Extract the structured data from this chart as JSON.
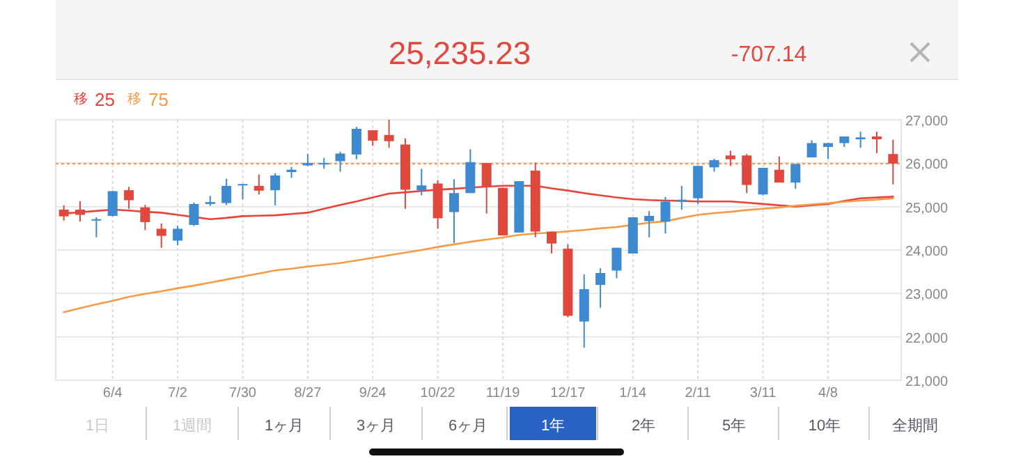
{
  "chart_data": {
    "type": "candlestick",
    "categories": [
      null,
      null,
      null,
      "6/4",
      null,
      null,
      null,
      "7/2",
      null,
      null,
      null,
      "7/30",
      null,
      null,
      null,
      "8/27",
      null,
      null,
      null,
      "9/24",
      null,
      null,
      null,
      "10/22",
      null,
      null,
      null,
      "11/19",
      null,
      null,
      null,
      "12/17",
      null,
      null,
      null,
      "1/14",
      null,
      null,
      null,
      "2/11",
      null,
      null,
      null,
      "3/11",
      null,
      null,
      null,
      "4/8",
      null,
      null,
      null,
      null
    ],
    "ohlc": [
      [
        24930,
        25030,
        24680,
        24775
      ],
      [
        24930,
        25125,
        24655,
        24810
      ],
      [
        24677,
        24754,
        24293,
        24710
      ],
      [
        24786,
        25367,
        24775,
        25356
      ],
      [
        25378,
        25455,
        24950,
        25148
      ],
      [
        24984,
        25038,
        24458,
        24644
      ],
      [
        24490,
        24611,
        24052,
        24326
      ],
      [
        24216,
        24556,
        24107,
        24490
      ],
      [
        24578,
        25093,
        24556,
        25060
      ],
      [
        25060,
        25247,
        25017,
        25104
      ],
      [
        25082,
        25641,
        25038,
        25477
      ],
      [
        25488,
        25520,
        25170,
        25520
      ],
      [
        25477,
        25740,
        25280,
        25367
      ],
      [
        25378,
        25773,
        25027,
        25718
      ],
      [
        25795,
        25915,
        25663,
        25850
      ],
      [
        25948,
        26211,
        25937,
        26003
      ],
      [
        25981,
        26123,
        25871,
        26003
      ],
      [
        26046,
        26266,
        25806,
        26222
      ],
      [
        26200,
        26836,
        26091,
        26792
      ],
      [
        26759,
        26759,
        26398,
        26518
      ],
      [
        26650,
        27000,
        26354,
        26507
      ],
      [
        26431,
        26573,
        24950,
        25389
      ],
      [
        25378,
        25871,
        25258,
        25488
      ],
      [
        25532,
        25608,
        24490,
        24731
      ],
      [
        24874,
        25630,
        24161,
        25312
      ],
      [
        25312,
        26321,
        25312,
        26025
      ],
      [
        26003,
        26003,
        24841,
        25477
      ],
      [
        25433,
        25433,
        24337,
        24337
      ],
      [
        24403,
        25586,
        24403,
        25586
      ],
      [
        25828,
        26014,
        24293,
        24425
      ],
      [
        24425,
        24425,
        23921,
        24150
      ],
      [
        24030,
        24129,
        22452,
        22485
      ],
      [
        22353,
        23438,
        21750,
        23098
      ],
      [
        23197,
        23580,
        22671,
        23471
      ],
      [
        23526,
        24052,
        23350,
        24052
      ],
      [
        23920,
        24753,
        23920,
        24753
      ],
      [
        24665,
        24896,
        24293,
        24786
      ],
      [
        24655,
        25225,
        24380,
        25115
      ],
      [
        25115,
        25477,
        24929,
        25159
      ],
      [
        25192,
        25937,
        25060,
        25937
      ],
      [
        25904,
        26102,
        25806,
        26069
      ],
      [
        26178,
        26288,
        25937,
        26090
      ],
      [
        26178,
        26211,
        25312,
        25499
      ],
      [
        25280,
        25893,
        25258,
        25893
      ],
      [
        25850,
        26156,
        25554,
        25554
      ],
      [
        25554,
        25981,
        25411,
        25981
      ],
      [
        26134,
        26529,
        26134,
        26463
      ],
      [
        26375,
        26463,
        26101,
        26463
      ],
      [
        26463,
        26616,
        26375,
        26616
      ],
      [
        26551,
        26726,
        26354,
        26595
      ],
      [
        26616,
        26726,
        26233,
        26551
      ],
      [
        26211,
        26540,
        25513,
        25992
      ]
    ],
    "colors": [
      "#e0483e",
      "#e0483e",
      "#3d8ad0",
      "#3d8ad0",
      "#e0483e",
      "#e0483e",
      "#e0483e",
      "#3d8ad0",
      "#3d8ad0",
      "#3d8ad0",
      "#3d8ad0",
      "#3d8ad0",
      "#e0483e",
      "#3d8ad0",
      "#3d8ad0",
      "#3d8ad0",
      "#3d8ad0",
      "#3d8ad0",
      "#3d8ad0",
      "#e0483e",
      "#e0483e",
      "#e0483e",
      "#3d8ad0",
      "#e0483e",
      "#3d8ad0",
      "#3d8ad0",
      "#e0483e",
      "#e0483e",
      "#3d8ad0",
      "#e0483e",
      "#e0483e",
      "#e0483e",
      "#3d8ad0",
      "#3d8ad0",
      "#3d8ad0",
      "#3d8ad0",
      "#3d8ad0",
      "#3d8ad0",
      "#3d8ad0",
      "#3d8ad0",
      "#3d8ad0",
      "#e0483e",
      "#e0483e",
      "#3d8ad0",
      "#e0483e",
      "#3d8ad0",
      "#3d8ad0",
      "#3d8ad0",
      "#3d8ad0",
      "#3d8ad0",
      "#e0483e",
      "#e0483e"
    ],
    "series": [
      {
        "name": "移 25",
        "type": "line",
        "color": "#e8423a",
        "values": [
          24840,
          24870,
          24900,
          24930,
          24910,
          24880,
          24860,
          24810,
          24760,
          24710,
          24740,
          24780,
          24790,
          24800,
          24830,
          24860,
          24950,
          25040,
          25120,
          25210,
          25300,
          25330,
          25360,
          25390,
          25410,
          25440,
          25460,
          25480,
          25480,
          25480,
          25420,
          25370,
          25310,
          25260,
          25210,
          25170,
          25150,
          25140,
          25130,
          25120,
          25120,
          25120,
          25090,
          25060,
          25030,
          25000,
          25030,
          25060,
          25130,
          25190,
          25210,
          25230
        ]
      },
      {
        "name": "移 75",
        "type": "line",
        "color": "#f59a45",
        "values": [
          22570,
          22660,
          22750,
          22830,
          22920,
          22990,
          23050,
          23120,
          23180,
          23250,
          23320,
          23390,
          23460,
          23530,
          23570,
          23620,
          23660,
          23700,
          23760,
          23820,
          23880,
          23940,
          24000,
          24070,
          24130,
          24190,
          24240,
          24290,
          24350,
          24380,
          24400,
          24430,
          24460,
          24500,
          24530,
          24580,
          24630,
          24660,
          24740,
          24810,
          24850,
          24880,
          24920,
          24950,
          24980,
          25020,
          25050,
          25080,
          25110,
          25140,
          25160,
          25190
        ]
      }
    ],
    "ylim": [
      21000,
      27000
    ],
    "yticks": [
      {
        "value": 21000,
        "label": "21,000"
      },
      {
        "value": 22000,
        "label": "22,000"
      },
      {
        "value": 23000,
        "label": "23,000"
      },
      {
        "value": 24000,
        "label": "24,000"
      },
      {
        "value": 25000,
        "label": "25,000"
      },
      {
        "value": 26000,
        "label": "26,000"
      },
      {
        "value": 27000,
        "label": "27,000"
      }
    ],
    "ref_lines": [
      {
        "axis": "y",
        "value": 25990,
        "color": "#f0a060",
        "line_style": "dotted"
      }
    ],
    "grid": true,
    "legend": "top left",
    "annotations": [
      "25,235.23",
      "-707.14",
      "1日",
      "1週間",
      "1ヶ月",
      "3ヶ月",
      "6ヶ月",
      "1年",
      "2年",
      "5年",
      "10年",
      "全期間"
    ]
  }
}
